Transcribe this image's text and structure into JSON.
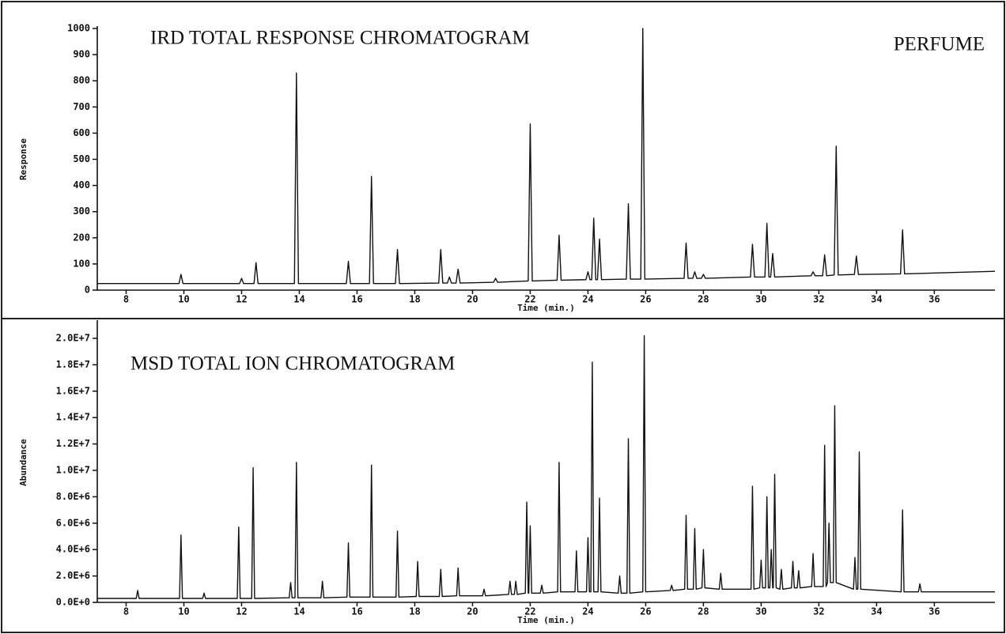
{
  "chart_data": [
    {
      "type": "line",
      "title": "IRD TOTAL RESPONSE CHROMATOGRAM",
      "annotation": "PERFUME",
      "x_label": "Time (min.)",
      "y_label": "Response",
      "color": "#111111",
      "xlim": [
        7,
        38.1
      ],
      "ylim": [
        0,
        1000
      ],
      "xticks": [
        8,
        10,
        12,
        14,
        16,
        18,
        20,
        22,
        24,
        26,
        28,
        30,
        32,
        34,
        36
      ],
      "yticks": [
        0,
        100,
        200,
        300,
        400,
        500,
        600,
        700,
        800,
        900,
        1000
      ],
      "x": [
        7,
        9.83,
        9.9,
        9.97,
        11.93,
        12.0,
        12.07,
        12.43,
        12.5,
        12.57,
        13.83,
        13.9,
        13.97,
        15.63,
        15.7,
        15.77,
        16.43,
        16.5,
        16.57,
        17.33,
        17.4,
        17.47,
        18.83,
        18.9,
        18.97,
        19.13,
        19.2,
        19.27,
        19.43,
        19.5,
        19.57,
        20.73,
        20.8,
        20.87,
        21.93,
        22.0,
        22.07,
        22.93,
        23.0,
        23.07,
        23.93,
        24.0,
        24.07,
        24.13,
        24.2,
        24.27,
        24.33,
        24.4,
        24.47,
        25.33,
        25.4,
        25.47,
        25.83,
        25.9,
        25.97,
        27.33,
        27.4,
        27.47,
        27.63,
        27.7,
        27.77,
        27.93,
        28.0,
        28.07,
        29.63,
        29.7,
        29.77,
        30.13,
        30.2,
        30.27,
        30.33,
        30.4,
        30.47,
        31.73,
        31.8,
        31.87,
        32.13,
        32.2,
        32.27,
        32.53,
        32.6,
        32.67,
        33.23,
        33.3,
        33.37,
        34.83,
        34.9,
        34.97,
        38.1
      ],
      "values": [
        25,
        25,
        60,
        25,
        25,
        45,
        25,
        25,
        105,
        25,
        25,
        830,
        25,
        25,
        110,
        25,
        25,
        435,
        25,
        25,
        155,
        25,
        27,
        155,
        27,
        27,
        50,
        27,
        27,
        80,
        27,
        30,
        45,
        30,
        35,
        635,
        35,
        38,
        210,
        38,
        40,
        70,
        40,
        40,
        275,
        40,
        40,
        195,
        40,
        42,
        330,
        42,
        42,
        1000,
        42,
        45,
        180,
        45,
        45,
        70,
        45,
        45,
        60,
        45,
        50,
        175,
        50,
        50,
        255,
        50,
        50,
        140,
        50,
        55,
        70,
        55,
        55,
        135,
        55,
        58,
        550,
        58,
        60,
        130,
        60,
        62,
        230,
        62,
        72
      ]
    },
    {
      "type": "line",
      "title": "MSD TOTAL ION CHROMATOGRAM",
      "x_label": "Time (min.)",
      "y_label": "Abundance",
      "color": "#111111",
      "xlim": [
        7,
        38.1
      ],
      "ylim": [
        0,
        21200000
      ],
      "xticks": [
        8,
        10,
        12,
        14,
        16,
        18,
        20,
        22,
        24,
        26,
        28,
        30,
        32,
        34,
        36
      ],
      "yticks": [
        {
          "value": 0,
          "label": "0.0E+0"
        },
        {
          "value": 2000000,
          "label": "2.0E+6"
        },
        {
          "value": 4000000,
          "label": "4.0E+6"
        },
        {
          "value": 6000000,
          "label": "6.0E+6"
        },
        {
          "value": 8000000,
          "label": "8.0E+6"
        },
        {
          "value": 10000000,
          "label": "1.0E+7"
        },
        {
          "value": 12000000,
          "label": "1.2E+7"
        },
        {
          "value": 14000000,
          "label": "1.4E+7"
        },
        {
          "value": 16000000,
          "label": "1.6E+7"
        },
        {
          "value": 18000000,
          "label": "1.8E+7"
        },
        {
          "value": 20000000,
          "label": "2.0E+7"
        }
      ],
      "x": [
        7,
        8.35,
        8.4,
        8.45,
        9.85,
        9.9,
        9.95,
        10.65,
        10.7,
        10.75,
        11.85,
        11.9,
        11.95,
        12.35,
        12.4,
        12.45,
        13.65,
        13.7,
        13.75,
        13.85,
        13.9,
        13.95,
        14.75,
        14.8,
        14.85,
        15.65,
        15.7,
        15.75,
        16.45,
        16.5,
        16.55,
        17.35,
        17.4,
        17.45,
        18.05,
        18.1,
        18.15,
        18.85,
        18.9,
        18.95,
        19.45,
        19.5,
        19.55,
        20.35,
        20.4,
        20.45,
        21.25,
        21.3,
        21.35,
        21.45,
        21.5,
        21.55,
        21.83,
        21.88,
        21.93,
        21.95,
        22.0,
        22.05,
        22.35,
        22.4,
        22.45,
        22.95,
        23.0,
        23.05,
        23.55,
        23.6,
        23.65,
        23.95,
        24.0,
        24.05,
        24.1,
        24.15,
        24.2,
        24.35,
        24.4,
        24.45,
        25.05,
        25.1,
        25.15,
        25.35,
        25.4,
        25.45,
        25.9,
        25.95,
        26.0,
        26.85,
        26.9,
        26.95,
        27.35,
        27.4,
        27.45,
        27.65,
        27.7,
        27.75,
        27.95,
        28.0,
        28.05,
        28.55,
        28.6,
        28.65,
        29.65,
        29.7,
        29.75,
        29.95,
        30.0,
        30.05,
        30.15,
        30.2,
        30.25,
        30.3,
        30.35,
        30.4,
        30.42,
        30.47,
        30.52,
        30.65,
        30.7,
        30.75,
        31.05,
        31.1,
        31.15,
        31.25,
        31.3,
        31.35,
        31.75,
        31.8,
        31.85,
        32.15,
        32.2,
        32.25,
        32.3,
        32.35,
        32.4,
        32.5,
        32.55,
        32.6,
        33.2,
        33.25,
        33.3,
        33.35,
        33.4,
        33.45,
        34.85,
        34.9,
        34.95,
        35.45,
        35.5,
        35.55,
        38.1
      ],
      "values": [
        300000,
        300000,
        900000,
        300000,
        300000,
        5100000,
        300000,
        300000,
        700000,
        300000,
        300000,
        5700000,
        300000,
        300000,
        10200000,
        300000,
        350000,
        1500000,
        350000,
        350000,
        10600000,
        350000,
        350000,
        1600000,
        350000,
        400000,
        4500000,
        400000,
        400000,
        10400000,
        400000,
        400000,
        5400000,
        400000,
        450000,
        3100000,
        450000,
        450000,
        2500000,
        450000,
        500000,
        2600000,
        500000,
        500000,
        1000000,
        500000,
        600000,
        1600000,
        600000,
        600000,
        1600000,
        600000,
        700000,
        7600000,
        700000,
        700000,
        5800000,
        700000,
        700000,
        1300000,
        700000,
        800000,
        10600000,
        800000,
        800000,
        3900000,
        800000,
        800000,
        4900000,
        800000,
        800000,
        18200000,
        800000,
        800000,
        7900000,
        800000,
        700000,
        2000000,
        700000,
        700000,
        12400000,
        700000,
        800000,
        20200000,
        800000,
        900000,
        1300000,
        900000,
        1000000,
        6600000,
        1000000,
        1000000,
        5600000,
        1000000,
        1100000,
        4000000,
        1100000,
        1000000,
        2200000,
        1000000,
        1000000,
        8800000,
        1000000,
        1100000,
        3200000,
        1100000,
        1100000,
        8000000,
        1100000,
        1100000,
        4000000,
        1100000,
        1100000,
        9700000,
        1100000,
        1000000,
        2500000,
        1000000,
        1100000,
        3100000,
        1100000,
        1100000,
        2400000,
        1100000,
        1200000,
        3700000,
        1200000,
        1200000,
        11900000,
        1200000,
        1500000,
        6000000,
        1500000,
        1500000,
        14900000,
        1500000,
        1000000,
        3400000,
        1000000,
        1000000,
        11400000,
        1000000,
        800000,
        7000000,
        800000,
        800000,
        1400000,
        800000,
        800000
      ]
    }
  ]
}
